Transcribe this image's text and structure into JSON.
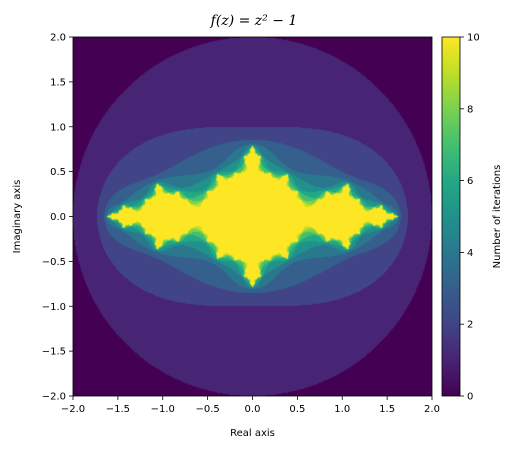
{
  "chart_data": {
    "type": "heatmap",
    "title": "f(z) = z² − 1",
    "xlabel": "Real axis",
    "ylabel": "Imaginary axis",
    "xlim": [
      -2.0,
      2.0
    ],
    "ylim": [
      -2.0,
      2.0
    ],
    "x_ticks": [
      "−2.0",
      "−1.5",
      "−1.0",
      "−0.5",
      "0.0",
      "0.5",
      "1.0",
      "1.5",
      "2.0"
    ],
    "y_ticks": [
      "−2.0",
      "−1.5",
      "−1.0",
      "−0.5",
      "0.0",
      "0.5",
      "1.0",
      "1.5",
      "2.0"
    ],
    "x_tick_values": [
      -2.0,
      -1.5,
      -1.0,
      -0.5,
      0.0,
      0.5,
      1.0,
      1.5,
      2.0
    ],
    "y_tick_values": [
      -2.0,
      -1.5,
      -1.0,
      -0.5,
      0.0,
      0.5,
      1.0,
      1.5,
      2.0
    ],
    "function": "z^2 - 1",
    "max_iterations": 10,
    "escape_radius": 2.0,
    "colorbar": {
      "label": "Number of iterations",
      "range": [
        0,
        10
      ],
      "ticks": [
        "0",
        "2",
        "4",
        "6",
        "8",
        "10"
      ],
      "tick_values": [
        0,
        2,
        4,
        6,
        8,
        10
      ],
      "colormap": "viridis"
    },
    "grid": false
  }
}
